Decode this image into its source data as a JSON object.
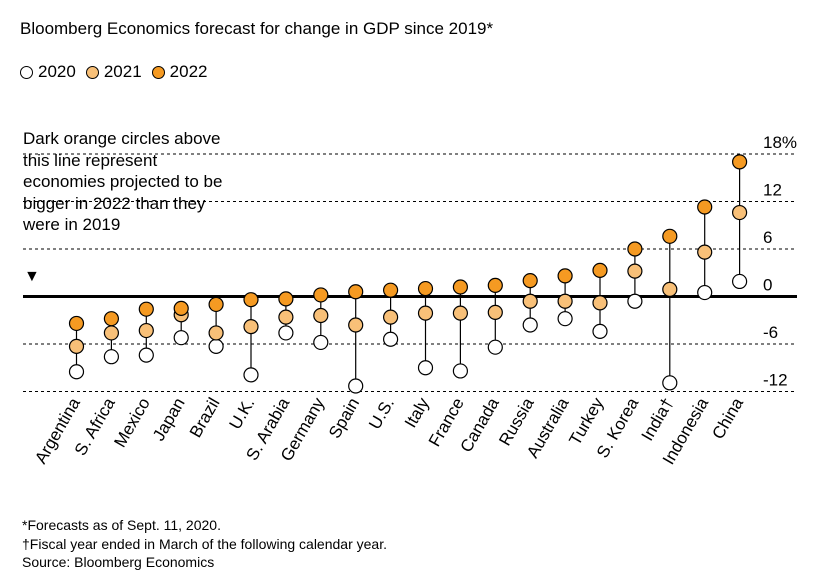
{
  "title": "Bloomberg Economics forecast for change in GDP since 2019*",
  "annotation": "Dark orange circles above this line represent economies projected to be bigger in 2022 than they were in 2019",
  "annotation_marker": "▼",
  "colors": {
    "y2020": "#ffffff",
    "y2021": "#f8c078",
    "y2022": "#f59a22",
    "axis": "#000000"
  },
  "footnotes": [
    "*Forecasts as of Sept. 11, 2020.",
    "†Fiscal year ended in March of the following calendar year.",
    "Source: Bloomberg Economics"
  ],
  "chart_data": {
    "type": "scatter",
    "title": "Bloomberg Economics forecast for change in GDP since 2019*",
    "categories": [
      "Argentina",
      "S. Africa",
      "Mexico",
      "Japan",
      "Brazil",
      "U.K.",
      "S. Arabia",
      "Germany",
      "Spain",
      "U.S.",
      "Italy",
      "France",
      "Canada",
      "Russia",
      "Australia",
      "Turkey",
      "S. Korea",
      "India†",
      "Indonesia",
      "China"
    ],
    "series": [
      {
        "name": "2020",
        "values": [
          -9.5,
          -7.6,
          -7.4,
          -5.2,
          -6.3,
          -9.9,
          -4.6,
          -5.8,
          -11.3,
          -5.4,
          -9.0,
          -9.4,
          -6.4,
          -3.6,
          -2.8,
          -4.4,
          -0.6,
          -10.9,
          0.5,
          1.9
        ]
      },
      {
        "name": "2021",
        "values": [
          -6.3,
          -4.6,
          -4.3,
          -2.3,
          -4.6,
          -3.8,
          -2.6,
          -2.4,
          -3.6,
          -2.6,
          -2.1,
          -2.1,
          -2.0,
          -0.6,
          -0.6,
          -0.8,
          3.2,
          0.9,
          5.6,
          10.6
        ]
      },
      {
        "name": "2022",
        "values": [
          -3.4,
          -2.8,
          -1.6,
          -1.5,
          -1.0,
          -0.4,
          -0.3,
          0.2,
          0.6,
          0.8,
          1.0,
          1.2,
          1.4,
          2.0,
          2.6,
          3.3,
          6.0,
          7.6,
          11.3,
          17.0
        ]
      }
    ],
    "yticks": [
      18,
      12,
      6,
      0,
      -6,
      -12
    ],
    "ytick_labels": [
      "18%",
      "12",
      "6",
      "0",
      "-6",
      "-12"
    ],
    "ylim": [
      -12,
      18
    ],
    "zero_line": 0,
    "grid": "dashed horizontal",
    "legend": "top-left"
  }
}
